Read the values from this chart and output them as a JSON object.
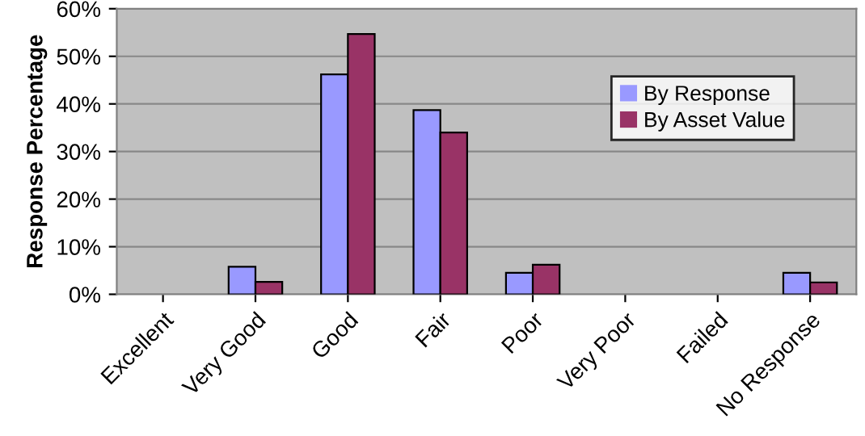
{
  "chart_data": {
    "type": "bar",
    "ylabel": "Response Percentage",
    "categories": [
      "Excellent",
      "Very Good",
      "Good",
      "Fair",
      "Poor",
      "Very Poor",
      "Failed",
      "No Response"
    ],
    "series": [
      {
        "name": "By Response",
        "color": "#9999ff",
        "values": [
          0,
          5.8,
          46.2,
          38.7,
          4.5,
          0,
          0,
          4.5
        ]
      },
      {
        "name": "By Asset Value",
        "color": "#993366",
        "values": [
          0,
          2.6,
          54.7,
          34.0,
          6.2,
          0,
          0,
          2.5
        ]
      }
    ],
    "ylim": [
      0,
      60
    ],
    "yticks": [
      {
        "value": 0,
        "label": "0%"
      },
      {
        "value": 10,
        "label": "10%"
      },
      {
        "value": 20,
        "label": "20%"
      },
      {
        "value": 30,
        "label": "30%"
      },
      {
        "value": 40,
        "label": "40%"
      },
      {
        "value": 50,
        "label": "50%"
      },
      {
        "value": 60,
        "label": "60%"
      }
    ],
    "grid": "y",
    "legend": "top right"
  }
}
